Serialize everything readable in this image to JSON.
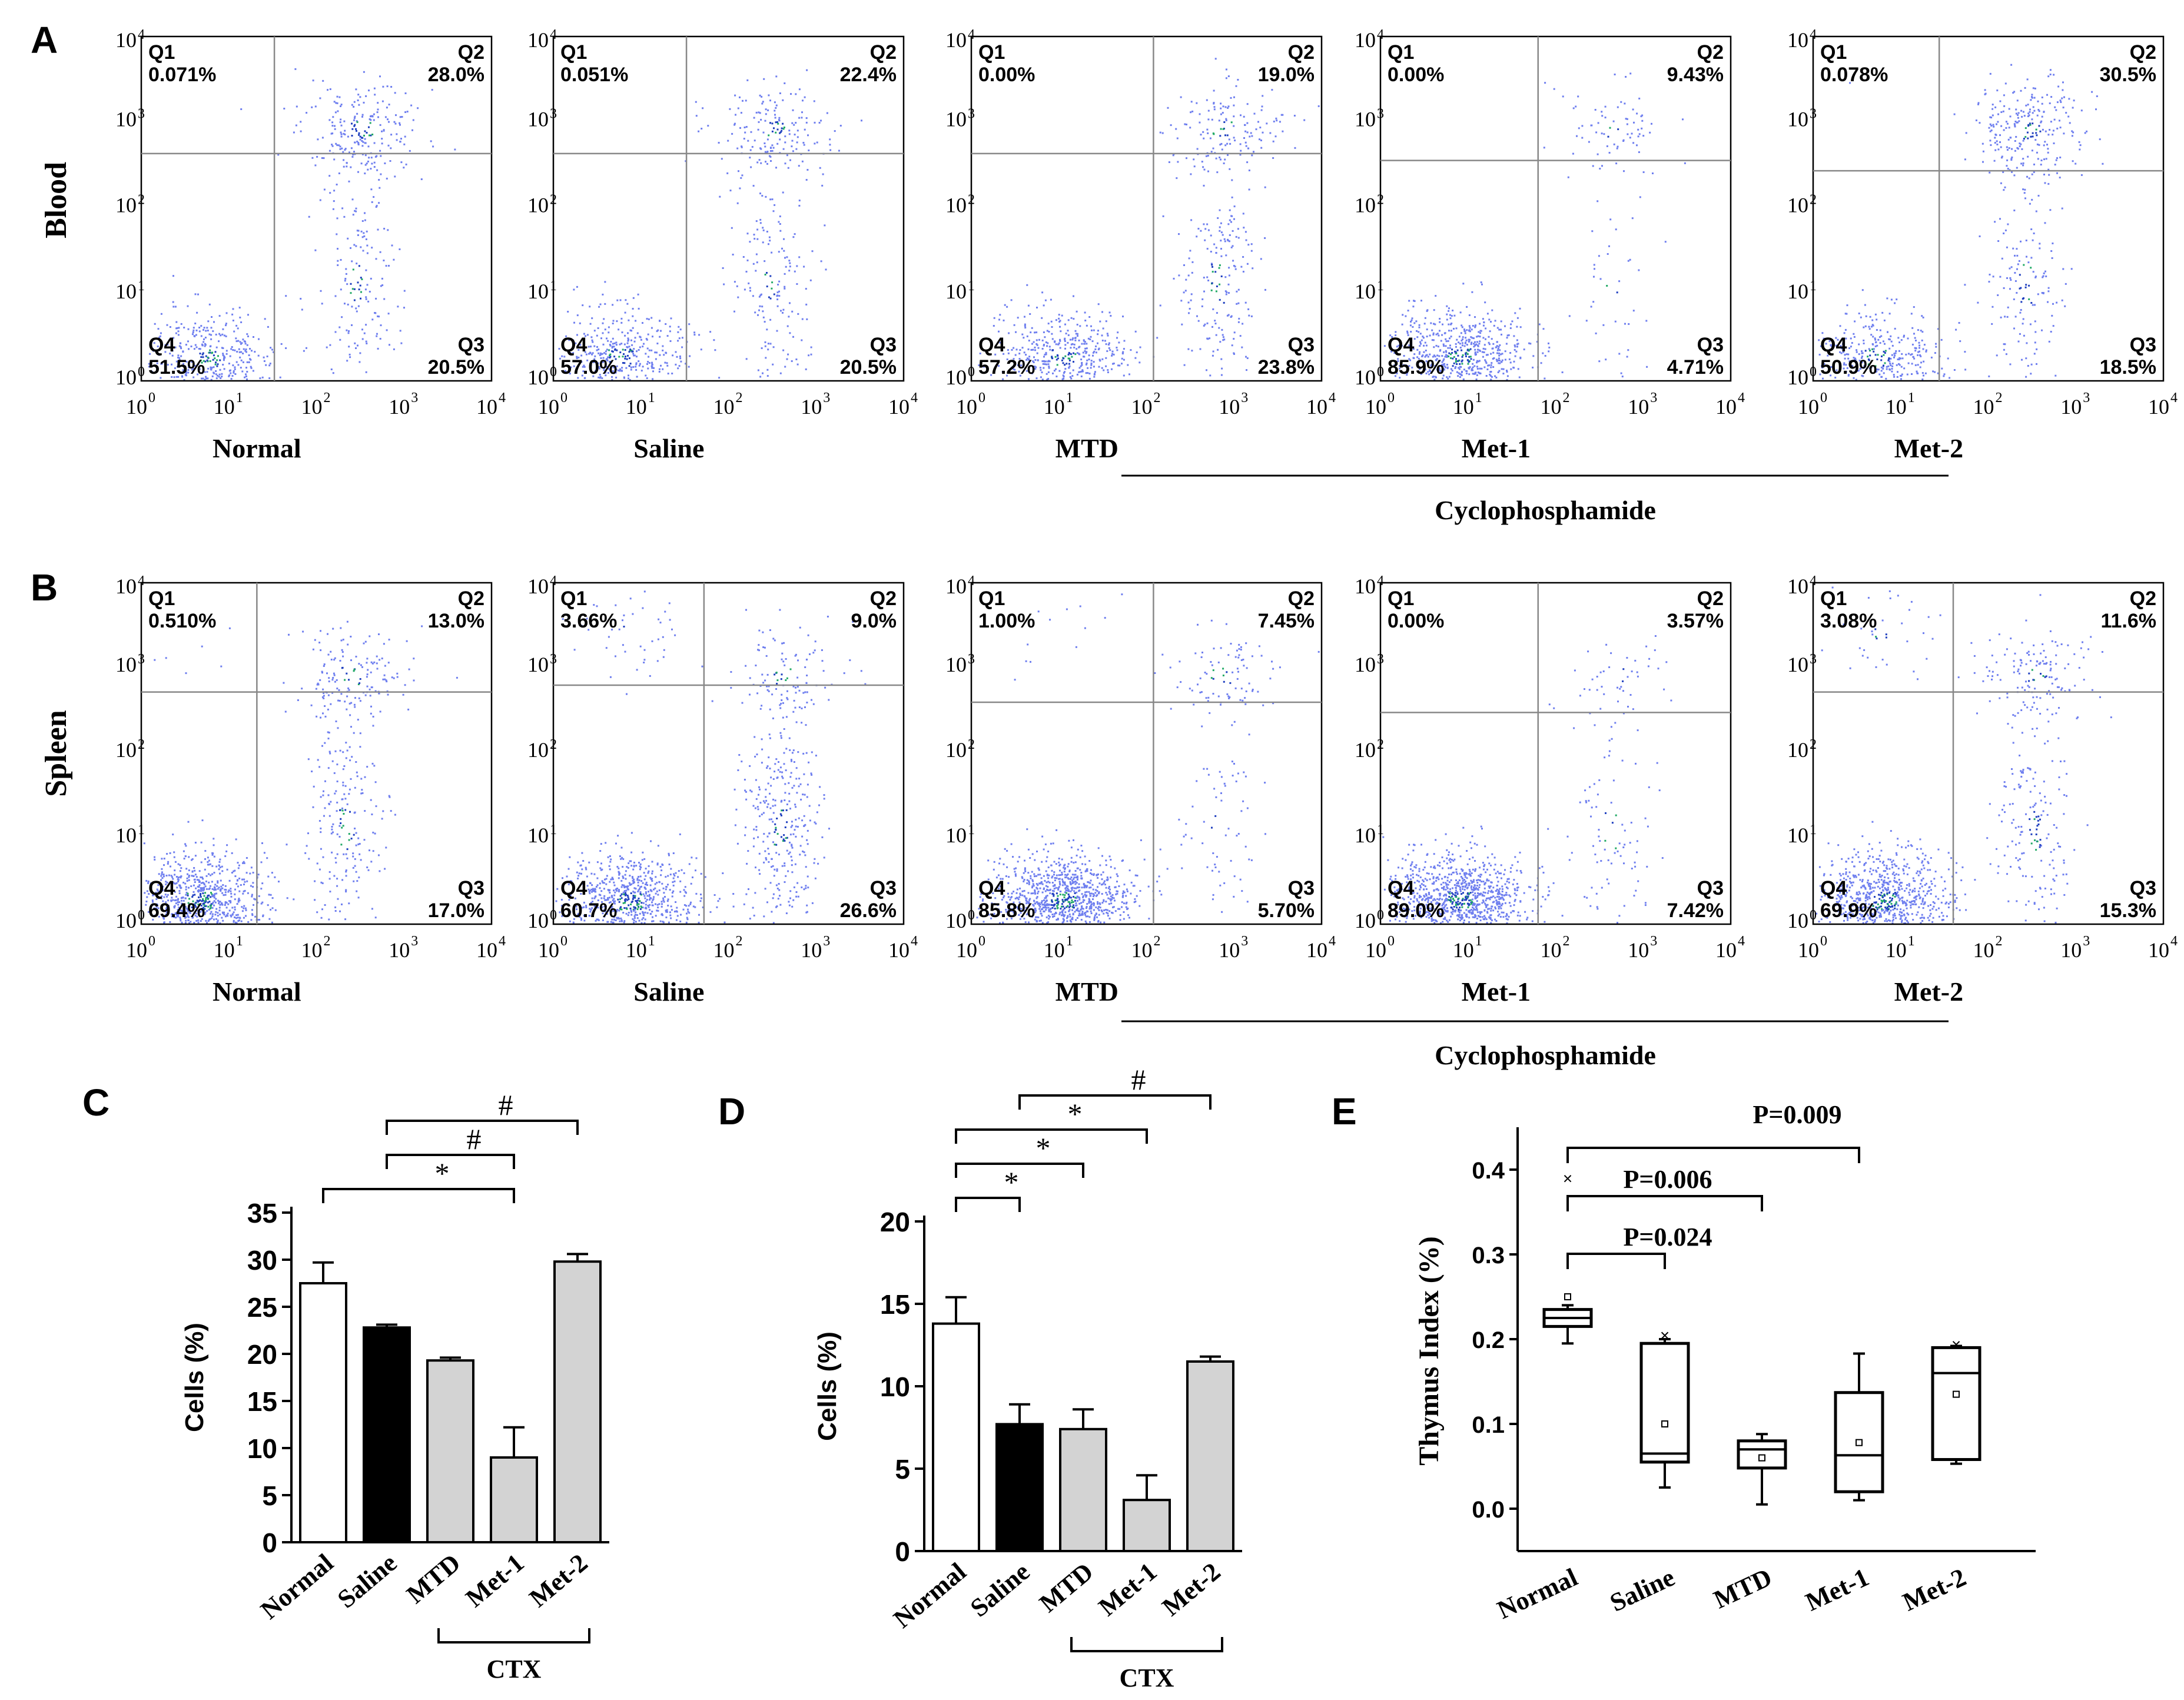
{
  "figure": {
    "panel_letters": [
      "A",
      "B",
      "C",
      "D",
      "E"
    ],
    "row_labels": [
      "Blood",
      "Spleen"
    ],
    "group_names": [
      "Normal",
      "Saline",
      "MTD",
      "Met-1",
      "Met-2"
    ],
    "treatment_label": "Cyclophosphamide",
    "quadrant_names": [
      "Q1",
      "Q2",
      "Q3",
      "Q4"
    ],
    "axis_ticks": [
      "10",
      "10",
      "10",
      "10",
      "10"
    ],
    "axis_exponents": [
      "0",
      "1",
      "2",
      "3",
      "4"
    ]
  },
  "chart_data": [
    {
      "type": "scatter",
      "panel": "A",
      "row_label": "Blood",
      "plots": [
        {
          "group": "Normal",
          "q1": "0.071%",
          "q2": "28.0%",
          "q3": "20.5%",
          "q4": "51.5%"
        },
        {
          "group": "Saline",
          "q1": "0.051%",
          "q2": "22.4%",
          "q3": "20.5%",
          "q4": "57.0%"
        },
        {
          "group": "MTD",
          "q1": "0.00%",
          "q2": "19.0%",
          "q3": "23.8%",
          "q4": "57.2%"
        },
        {
          "group": "Met-1",
          "q1": "0.00%",
          "q2": "9.43%",
          "q3": "4.71%",
          "q4": "85.9%"
        },
        {
          "group": "Met-2",
          "q1": "0.078%",
          "q2": "30.5%",
          "q3": "18.5%",
          "q4": "50.9%"
        }
      ],
      "treatment_label": "Cyclophosphamide"
    },
    {
      "type": "scatter",
      "panel": "B",
      "row_label": "Spleen",
      "plots": [
        {
          "group": "Normal",
          "q1": "0.510%",
          "q2": "13.0%",
          "q3": "17.0%",
          "q4": "69.4%"
        },
        {
          "group": "Saline",
          "q1": "3.66%",
          "q2": "9.0%",
          "q3": "26.6%",
          "q4": "60.7%"
        },
        {
          "group": "MTD",
          "q1": "1.00%",
          "q2": "7.45%",
          "q3": "5.70%",
          "q4": "85.8%"
        },
        {
          "group": "Met-1",
          "q1": "0.00%",
          "q2": "3.57%",
          "q3": "7.42%",
          "q4": "89.0%"
        },
        {
          "group": "Met-2",
          "q1": "3.08%",
          "q2": "11.6%",
          "q3": "15.3%",
          "q4": "69.9%"
        }
      ],
      "treatment_label": "Cyclophosphamide"
    },
    {
      "type": "bar",
      "panel": "C",
      "categories": [
        "Normal",
        "Saline",
        "MTD",
        "Met-1",
        "Met-2"
      ],
      "values": [
        27.5,
        22.8,
        19.3,
        9.0,
        29.8
      ],
      "errors": [
        2.2,
        0.3,
        0.3,
        3.2,
        0.8
      ],
      "colors": [
        "#ffffff",
        "#000000",
        "#d3d3d3",
        "#d3d3d3",
        "#d3d3d3"
      ],
      "ylabel": "Cells (%)",
      "ylim": [
        0,
        35
      ],
      "yticks": [
        0,
        5,
        10,
        15,
        20,
        25,
        30,
        35
      ],
      "group_label": "CTX",
      "significance": [
        {
          "from": "Normal",
          "to": "Met-1",
          "symbol": "*"
        },
        {
          "from": "Saline",
          "to": "Met-1",
          "symbol": "#"
        },
        {
          "from": "Saline",
          "to": "Met-2",
          "symbol": "#"
        }
      ]
    },
    {
      "type": "bar",
      "panel": "D",
      "categories": [
        "Normal",
        "Saline",
        "MTD",
        "Met-1",
        "Met-2"
      ],
      "values": [
        13.8,
        7.7,
        7.4,
        3.1,
        11.5
      ],
      "errors": [
        1.6,
        1.2,
        1.2,
        1.5,
        0.3
      ],
      "colors": [
        "#ffffff",
        "#000000",
        "#d3d3d3",
        "#d3d3d3",
        "#d3d3d3"
      ],
      "ylabel": "Cells (%)",
      "ylim": [
        0,
        20
      ],
      "yticks": [
        0,
        5,
        10,
        15,
        20
      ],
      "group_label": "CTX",
      "significance": [
        {
          "from": "Normal",
          "to": "Saline",
          "symbol": "*"
        },
        {
          "from": "Normal",
          "to": "MTD",
          "symbol": "*"
        },
        {
          "from": "Normal",
          "to": "Met-1",
          "symbol": "*"
        },
        {
          "from": "Saline",
          "to": "Met-2",
          "symbol": "#"
        }
      ]
    },
    {
      "type": "box",
      "panel": "E",
      "categories": [
        "Normal",
        "Saline",
        "MTD",
        "Met-1",
        "Met-2"
      ],
      "boxes": [
        {
          "min": 0.195,
          "q1": 0.215,
          "median": 0.225,
          "q3": 0.235,
          "max": 0.24,
          "mean": 0.25,
          "outlier": 0.39
        },
        {
          "min": 0.025,
          "q1": 0.055,
          "median": 0.065,
          "q3": 0.195,
          "max": 0.2,
          "mean": 0.1,
          "outlier": 0.205
        },
        {
          "min": 0.005,
          "q1": 0.048,
          "median": 0.07,
          "q3": 0.08,
          "max": 0.088,
          "mean": 0.06,
          "outlier": null
        },
        {
          "min": 0.01,
          "q1": 0.02,
          "median": 0.063,
          "q3": 0.137,
          "max": 0.183,
          "mean": 0.078,
          "outlier": null
        },
        {
          "min": 0.053,
          "q1": 0.058,
          "median": 0.16,
          "q3": 0.19,
          "max": 0.192,
          "mean": 0.135,
          "outlier": 0.194
        }
      ],
      "ylabel": "Thymus Index (%)",
      "ylim": [
        -0.05,
        0.45
      ],
      "yticks": [
        "0.0",
        "0.1",
        "0.2",
        "0.3",
        "0.4"
      ],
      "comparisons": [
        {
          "from": "Normal",
          "to": "Saline",
          "label": "P=0.024"
        },
        {
          "from": "Normal",
          "to": "MTD",
          "label": "P=0.006"
        },
        {
          "from": "Normal",
          "to": "Met-1",
          "label": "P=0.009"
        }
      ]
    }
  ]
}
